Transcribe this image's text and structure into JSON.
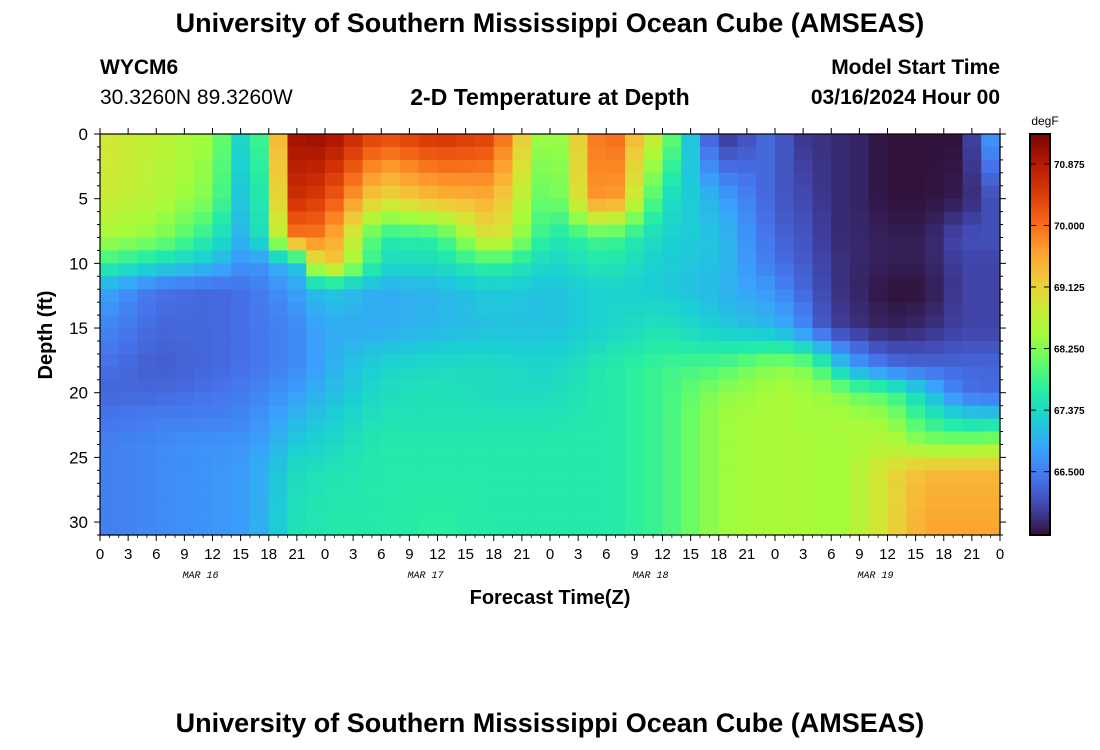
{
  "header": {
    "title": "University of Southern Mississippi Ocean Cube (AMSEAS)",
    "station": "WYCM6",
    "coords": "30.3260N  89.3260W",
    "subtitle": "2-D Temperature at Depth",
    "model_label": "Model Start Time",
    "model_time": "03/16/2024 Hour 00",
    "footer_title": "University of Southern Mississippi Ocean Cube (AMSEAS)"
  },
  "chart_data": {
    "type": "heatmap",
    "title": "2-D Temperature at Depth",
    "xlabel": "Forecast Time(Z)",
    "ylabel": "Depth (ft)",
    "x_range_hours": [
      0,
      96
    ],
    "xticks": [
      "0",
      "3",
      "6",
      "9",
      "12",
      "15",
      "18",
      "21",
      "0",
      "3",
      "6",
      "9",
      "12",
      "15",
      "18",
      "21",
      "0",
      "3",
      "6",
      "9",
      "12",
      "15",
      "18",
      "21",
      "0",
      "3",
      "6",
      "9",
      "12",
      "15",
      "18",
      "21",
      "0"
    ],
    "date_labels": [
      "MAR 16",
      "MAR 17",
      "MAR 18",
      "MAR 19"
    ],
    "ylim": [
      0,
      31
    ],
    "yticks": [
      0,
      5,
      10,
      15,
      20,
      25,
      30
    ],
    "colorbar": {
      "unit": "degF",
      "range": [
        65.6,
        71.3
      ],
      "ticks": [
        "70.875",
        "70.000",
        "69.125",
        "68.250",
        "67.375",
        "66.500"
      ],
      "tick_values": [
        70.875,
        70.0,
        69.125,
        68.25,
        67.375,
        66.5
      ]
    },
    "colormap": [
      "#30123b",
      "#4145ab",
      "#4675ed",
      "#39a2fc",
      "#1bcfd4",
      "#24eca6",
      "#61fc6c",
      "#a4fc3b",
      "#d1e834",
      "#f3c63a",
      "#fe9b2d",
      "#f36315",
      "#d93806",
      "#b11901",
      "#7a0402"
    ],
    "cols_hours": [
      0,
      6,
      12,
      16,
      21,
      24,
      30,
      36,
      42,
      48,
      54,
      60,
      66,
      72,
      74,
      76,
      78,
      80,
      84,
      88,
      92,
      96
    ],
    "rows_ft": [
      0,
      5,
      8,
      10,
      12,
      15,
      18,
      20,
      22,
      24,
      26,
      31
    ],
    "grid_degF": [
      [
        68.9,
        68.7,
        68.4,
        67.0,
        71.0,
        71.1,
        70.3,
        70.6,
        70.4,
        68.0,
        70.3,
        68.5,
        65.8,
        66.4,
        65.9,
        65.9,
        65.8,
        65.8,
        65.6,
        65.6,
        65.6,
        67.1
      ],
      [
        68.8,
        68.6,
        68.2,
        66.8,
        70.6,
        70.4,
        69.0,
        69.4,
        69.5,
        67.8,
        70.1,
        67.5,
        66.9,
        66.2,
        66.1,
        66.0,
        65.8,
        65.8,
        65.6,
        65.6,
        65.7,
        66.2
      ],
      [
        68.5,
        68.3,
        67.6,
        66.8,
        69.9,
        69.9,
        67.6,
        67.7,
        69.1,
        67.5,
        67.9,
        67.3,
        67.1,
        66.3,
        66.2,
        66.1,
        65.8,
        65.8,
        65.7,
        65.7,
        66.1,
        66.1
      ],
      [
        67.8,
        67.4,
        67.1,
        66.6,
        67.2,
        69.6,
        67.4,
        67.4,
        67.8,
        67.3,
        67.6,
        67.2,
        67.1,
        66.4,
        66.3,
        66.1,
        65.9,
        65.8,
        65.7,
        65.7,
        66.0,
        66.0
      ],
      [
        66.9,
        66.4,
        66.3,
        66.4,
        66.8,
        67.2,
        66.9,
        67.0,
        67.2,
        67.1,
        67.3,
        67.2,
        67.0,
        66.7,
        66.4,
        66.2,
        65.9,
        65.8,
        65.6,
        65.6,
        66.0,
        66.0
      ],
      [
        66.6,
        66.3,
        66.3,
        66.4,
        66.6,
        66.9,
        66.9,
        67.0,
        67.1,
        67.1,
        67.3,
        67.5,
        67.2,
        67.0,
        66.8,
        66.4,
        66.0,
        65.9,
        65.7,
        65.8,
        66.0,
        66.0
      ],
      [
        66.4,
        66.2,
        66.3,
        66.4,
        66.6,
        66.9,
        67.3,
        67.4,
        67.4,
        67.3,
        67.6,
        67.8,
        67.9,
        68.3,
        68.3,
        68.1,
        67.5,
        66.9,
        66.4,
        66.3,
        66.3,
        66.3
      ],
      [
        66.3,
        66.3,
        66.4,
        66.5,
        66.8,
        67.0,
        67.4,
        67.5,
        67.4,
        67.4,
        67.6,
        67.8,
        68.3,
        68.5,
        68.5,
        68.4,
        68.4,
        68.1,
        67.9,
        67.2,
        66.4,
        66.3
      ],
      [
        66.4,
        66.5,
        66.5,
        66.6,
        67.0,
        67.2,
        67.5,
        67.5,
        67.5,
        67.5,
        67.6,
        67.8,
        68.4,
        68.5,
        68.5,
        68.4,
        68.5,
        68.5,
        68.4,
        67.7,
        67.3,
        67.3
      ],
      [
        66.5,
        66.6,
        66.7,
        66.7,
        67.2,
        67.3,
        67.6,
        67.6,
        67.6,
        67.6,
        67.6,
        67.8,
        68.4,
        68.5,
        68.5,
        68.5,
        68.4,
        68.5,
        68.6,
        68.3,
        68.3,
        68.4
      ],
      [
        66.5,
        66.6,
        66.7,
        66.8,
        67.4,
        67.5,
        67.6,
        67.6,
        67.6,
        67.6,
        67.6,
        67.8,
        68.4,
        68.5,
        68.5,
        68.5,
        68.4,
        68.5,
        69.0,
        69.4,
        69.4,
        69.4
      ],
      [
        66.5,
        66.6,
        66.7,
        66.8,
        67.5,
        67.6,
        67.6,
        67.7,
        67.6,
        67.6,
        67.6,
        67.8,
        68.4,
        68.5,
        68.5,
        68.5,
        68.4,
        68.5,
        69.0,
        69.6,
        69.6,
        69.6
      ]
    ]
  }
}
